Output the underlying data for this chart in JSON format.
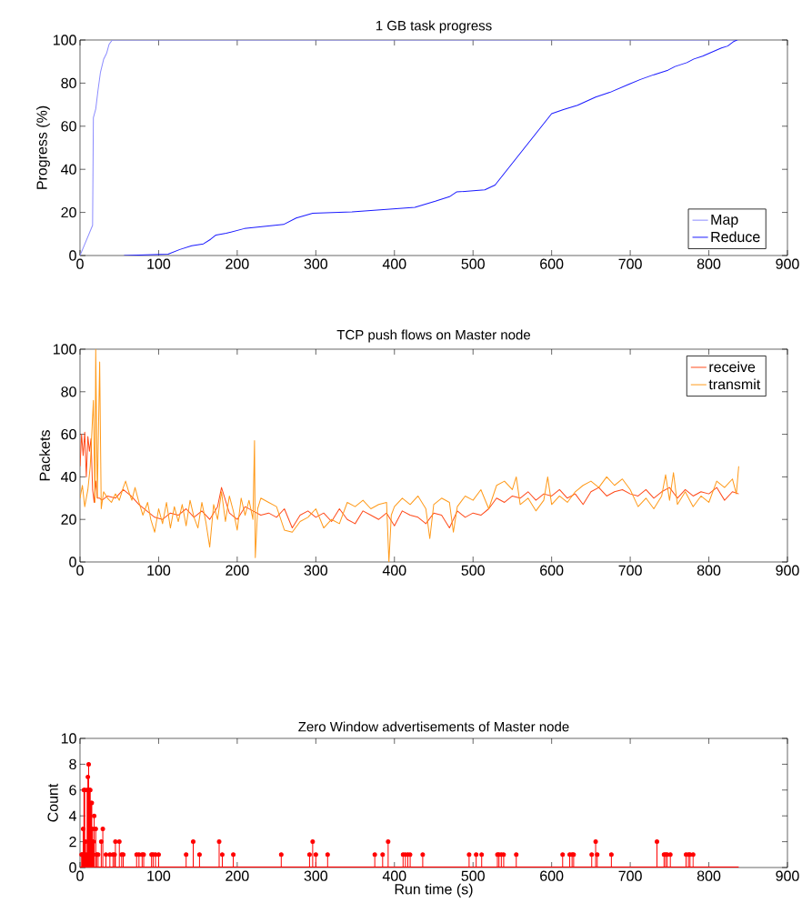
{
  "chart_data": [
    {
      "type": "line",
      "title": "1 GB task progress",
      "ylabel": "Progress (%)",
      "xlim": [
        0,
        900
      ],
      "ylim": [
        0,
        100
      ],
      "xticks": [
        0,
        100,
        200,
        300,
        400,
        500,
        600,
        700,
        800,
        900
      ],
      "yticks": [
        0,
        20,
        40,
        60,
        80,
        100
      ],
      "legend": "bottom right",
      "series": [
        {
          "name": "Map",
          "color": "#8c8cff",
          "x": [
            0,
            16,
            17,
            20,
            23,
            26,
            30,
            34,
            37,
            41,
            45,
            838
          ],
          "values": [
            0,
            14,
            64,
            68,
            77,
            85,
            91,
            94,
            98,
            100,
            100,
            100
          ]
        },
        {
          "name": "Reduce",
          "color": "#1a1aff",
          "x": [
            56,
            112,
            127,
            142,
            157,
            166,
            173,
            186,
            209,
            259,
            275,
            296,
            346,
            426,
            452,
            470,
            479,
            515,
            528,
            600,
            615,
            633,
            656,
            674,
            698,
            713,
            730,
            748,
            757,
            772,
            781,
            792,
            816,
            824,
            832,
            836
          ],
          "values": [
            0,
            0.6,
            2.8,
            4.5,
            5.4,
            7.5,
            9.5,
            10.3,
            12.5,
            14.4,
            17.4,
            19.6,
            20.2,
            22.4,
            25.2,
            27.3,
            29.5,
            30.5,
            32.7,
            65.8,
            67.7,
            69.7,
            73.5,
            75.7,
            79.4,
            81.7,
            83.9,
            86,
            87.7,
            89.5,
            91.2,
            92.5,
            96.3,
            97.2,
            99.4,
            100
          ]
        }
      ]
    },
    {
      "type": "line",
      "title": "TCP push flows on Master node",
      "ylabel": "Packets",
      "xlim": [
        0,
        900
      ],
      "ylim": [
        0,
        100
      ],
      "xticks": [
        0,
        100,
        200,
        300,
        400,
        500,
        600,
        700,
        800,
        900
      ],
      "yticks": [
        0,
        20,
        40,
        60,
        80,
        100
      ],
      "legend": "top right",
      "series": [
        {
          "name": "receive",
          "color": "#ff4a1a",
          "x": [
            0,
            2,
            4,
            6,
            8,
            10,
            12,
            14,
            16,
            18,
            20,
            22,
            25,
            28,
            35,
            45,
            55,
            65,
            75,
            85,
            95,
            105,
            115,
            125,
            135,
            145,
            155,
            165,
            175,
            180,
            190,
            200,
            210,
            220,
            230,
            240,
            250,
            260,
            270,
            280,
            290,
            300,
            310,
            320,
            330,
            340,
            350,
            360,
            370,
            380,
            390,
            400,
            410,
            420,
            430,
            440,
            450,
            460,
            470,
            480,
            490,
            500,
            510,
            520,
            530,
            540,
            550,
            560,
            570,
            580,
            590,
            600,
            610,
            620,
            630,
            640,
            650,
            660,
            670,
            680,
            690,
            700,
            710,
            720,
            730,
            740,
            750,
            760,
            770,
            780,
            790,
            800,
            810,
            820,
            830,
            838
          ],
          "values": [
            45,
            60,
            50,
            61,
            40,
            59,
            52,
            58,
            34,
            28,
            38,
            30,
            30,
            29,
            31,
            30,
            34,
            31,
            27,
            24,
            21,
            20,
            23,
            22,
            25,
            21,
            24,
            20,
            26,
            35,
            23,
            20,
            26,
            24,
            22,
            23,
            21,
            25,
            16,
            22,
            24,
            21,
            23,
            19,
            25,
            20,
            18,
            24,
            22,
            20,
            23,
            17,
            24,
            22,
            21,
            18,
            23,
            22,
            16,
            24,
            21,
            23,
            22,
            25,
            30,
            28,
            31,
            30,
            33,
            29,
            32,
            31,
            34,
            30,
            32,
            27,
            33,
            35,
            31,
            33,
            34,
            32,
            31,
            34,
            30,
            33,
            35,
            30,
            34,
            31,
            33,
            32,
            35,
            29,
            33,
            32
          ]
        },
        {
          "name": "transmit",
          "color": "#ff9a1a",
          "x": [
            0,
            3,
            6,
            10,
            13,
            17,
            19,
            20,
            22,
            25,
            27,
            30,
            35,
            40,
            45,
            50,
            55,
            58,
            62,
            66,
            70,
            75,
            80,
            86,
            90,
            95,
            100,
            105,
            110,
            115,
            120,
            125,
            130,
            135,
            140,
            145,
            150,
            155,
            160,
            165,
            170,
            175,
            180,
            185,
            190,
            195,
            200,
            205,
            210,
            215,
            220,
            222,
            223,
            226,
            230,
            240,
            250,
            260,
            270,
            280,
            290,
            300,
            310,
            320,
            330,
            340,
            350,
            360,
            370,
            380,
            390,
            393,
            396,
            400,
            410,
            420,
            430,
            440,
            445,
            450,
            460,
            470,
            475,
            480,
            490,
            500,
            510,
            520,
            530,
            540,
            550,
            555,
            560,
            570,
            580,
            590,
            595,
            600,
            610,
            620,
            630,
            640,
            650,
            660,
            670,
            680,
            690,
            700,
            710,
            720,
            730,
            740,
            745,
            750,
            755,
            760,
            770,
            780,
            790,
            800,
            810,
            820,
            830,
            835,
            838
          ],
          "values": [
            30,
            36,
            26,
            34,
            45,
            76,
            28,
            100,
            30,
            94,
            25,
            33,
            30,
            28,
            32,
            29,
            35,
            38,
            33,
            29,
            35,
            28,
            22,
            28,
            20,
            14,
            25,
            18,
            28,
            16,
            26,
            19,
            27,
            17,
            29,
            21,
            16,
            28,
            19,
            7,
            27,
            20,
            33,
            19,
            31,
            24,
            15,
            30,
            22,
            29,
            20,
            57,
            2,
            25,
            30,
            28,
            26,
            15,
            14,
            19,
            21,
            25,
            16,
            20,
            18,
            28,
            26,
            29,
            25,
            27,
            28,
            0,
            22,
            26,
            30,
            27,
            31,
            25,
            11,
            27,
            30,
            28,
            14,
            26,
            31,
            29,
            34,
            25,
            36,
            38,
            34,
            40,
            27,
            30,
            24,
            29,
            40,
            27,
            31,
            28,
            33,
            36,
            38,
            35,
            40,
            36,
            39,
            34,
            26,
            30,
            25,
            31,
            41,
            29,
            42,
            27,
            33,
            26,
            31,
            28,
            38,
            35,
            39,
            32,
            45
          ]
        }
      ]
    },
    {
      "type": "lollipop",
      "title": "Zero Window advertisements of Master node",
      "xlabel": "Run time (s)",
      "ylabel": "Count",
      "xlim": [
        0,
        900
      ],
      "ylim": [
        0,
        10
      ],
      "xticks": [
        0,
        100,
        200,
        300,
        400,
        500,
        600,
        700,
        800,
        900
      ],
      "yticks": [
        0,
        2,
        4,
        6,
        8,
        10
      ],
      "series": [
        {
          "marker": "circle",
          "color": "#ff0000",
          "x": [
            2,
            3,
            4,
            5,
            6,
            7,
            8,
            9,
            10,
            11,
            12,
            13,
            14,
            15,
            16,
            17,
            18,
            20,
            21,
            23,
            27,
            29,
            33,
            38,
            42,
            44,
            45,
            50,
            53,
            55,
            72,
            75,
            79,
            81,
            91,
            93,
            96,
            100,
            135,
            144,
            152,
            177,
            181,
            195,
            256,
            292,
            296,
            300,
            315,
            375,
            385,
            392,
            411,
            414,
            417,
            420,
            436,
            495,
            504,
            511,
            531,
            533,
            536,
            539,
            555,
            614,
            623,
            626,
            628,
            651,
            656,
            658,
            676,
            734,
            743,
            745,
            747,
            751,
            771,
            774,
            776,
            780
          ],
          "values": [
            1,
            1,
            3,
            6,
            6,
            2,
            1,
            6,
            7,
            8,
            6,
            6,
            5,
            5,
            3,
            2,
            4,
            3,
            1,
            1,
            2,
            3,
            1,
            1,
            1,
            1,
            2,
            2,
            1,
            1,
            1,
            1,
            1,
            1,
            1,
            1,
            1,
            1,
            1,
            2,
            1,
            2,
            1,
            1,
            1,
            1,
            2,
            1,
            1,
            1,
            1,
            2,
            1,
            1,
            1,
            1,
            1,
            1,
            1,
            1,
            1,
            1,
            1,
            1,
            1,
            1,
            1,
            1,
            1,
            1,
            2,
            1,
            1,
            2,
            1,
            1,
            1,
            1,
            1,
            1,
            1,
            1
          ]
        },
        {
          "type": "line",
          "marker": "none",
          "color": "#ff0000",
          "x": [
            0,
            838
          ],
          "values": [
            0,
            0
          ]
        }
      ]
    }
  ]
}
